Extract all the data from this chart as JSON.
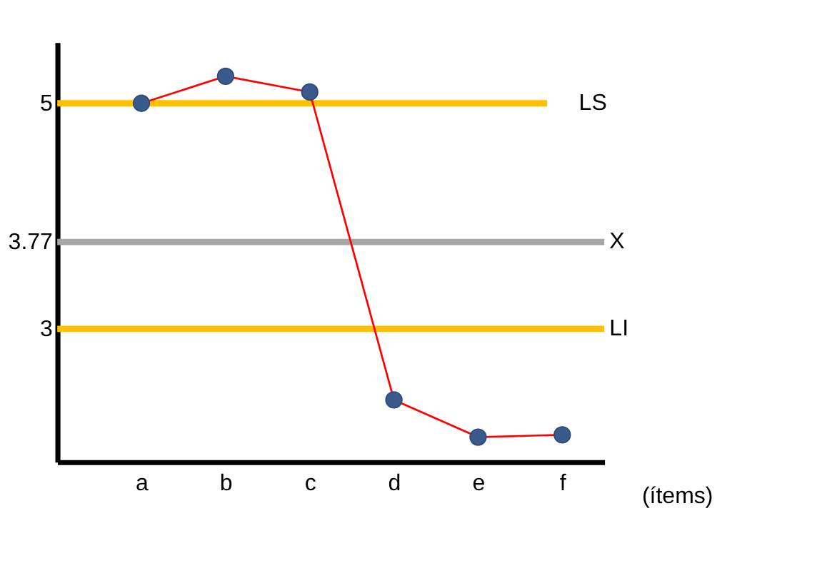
{
  "chart_data": {
    "type": "line",
    "xlabel": "(ítems)",
    "categories": [
      "a",
      "b",
      "c",
      "d",
      "e",
      "f"
    ],
    "series": [
      {
        "color": "#ff0000",
        "values": [
          5.0,
          5.24,
          5.1,
          2.37,
          2.04,
          2.06
        ]
      }
    ],
    "marker": "circle",
    "line_style": "solid",
    "ylim": [
      1.82,
      5.54
    ],
    "yticks": [
      3,
      3.77,
      5
    ],
    "grid": false,
    "ref_lines": [
      {
        "axis": "y",
        "value": 5,
        "label": "LS",
        "color": "#ffc000"
      },
      {
        "axis": "y",
        "value": 3.77,
        "label": "X",
        "color": "#a6a6a6"
      },
      {
        "axis": "y",
        "value": 3,
        "label": "LI",
        "color": "#ffc000"
      }
    ]
  }
}
